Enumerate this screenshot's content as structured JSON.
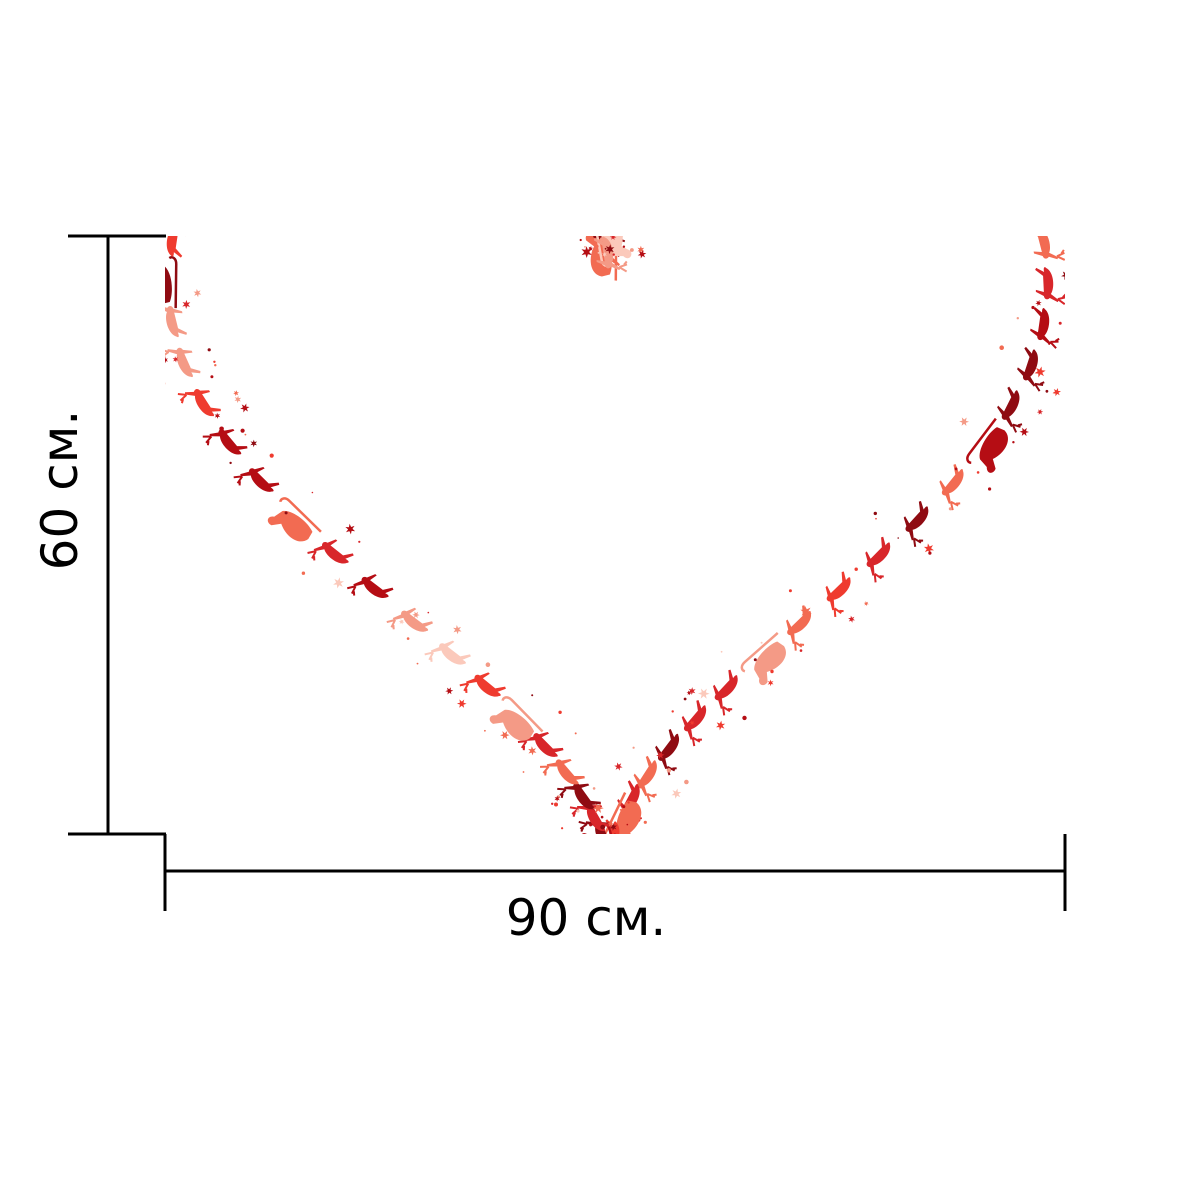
{
  "dimensions": {
    "width_label": "90 см.",
    "height_label": "60 см."
  },
  "print": {
    "motif": "heart-outline-of-santa-sleighs-and-reindeer",
    "palette": [
      "#b50d14",
      "#d8262a",
      "#ef3b2f",
      "#f26b52",
      "#f49a86",
      "#fbc9bb",
      "#8f0b12"
    ]
  },
  "colors": {
    "dimension_lines": "#000000",
    "background": "#ffffff"
  }
}
